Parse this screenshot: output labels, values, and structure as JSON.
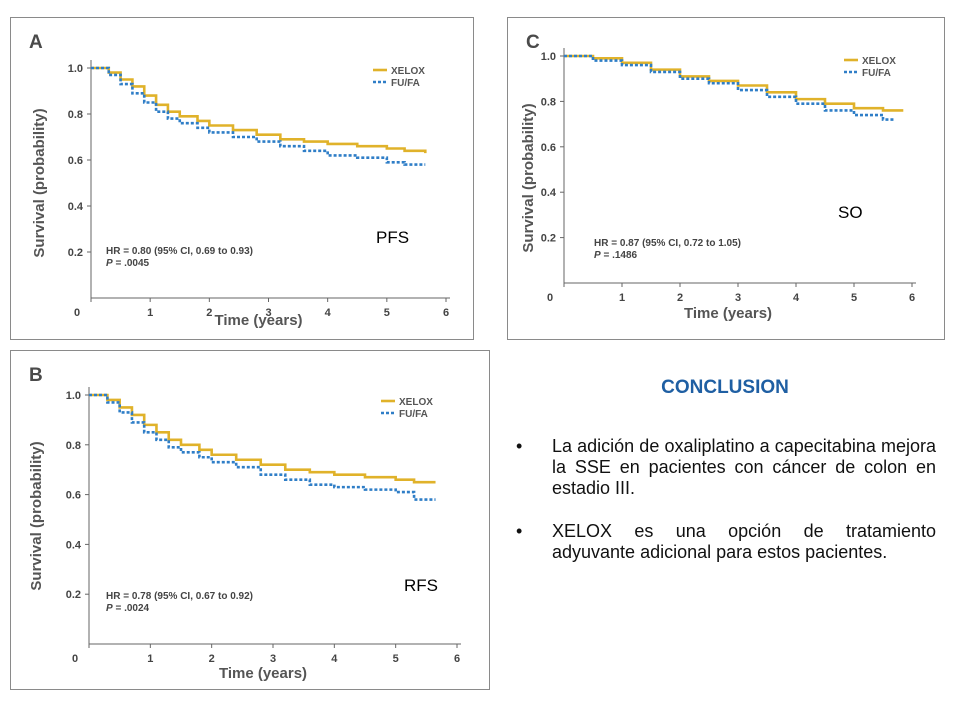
{
  "colors": {
    "xelox": "#e0b22a",
    "fufa": "#2f7ec7",
    "axis": "#666666",
    "conclusion_title": "#1f5fa3"
  },
  "chart_data": [
    {
      "type": "line",
      "panel": "A",
      "endpoint_label": "PFS",
      "xlabel": "Time (years)",
      "ylabel": "Survival (probability)",
      "xlim": [
        0,
        6
      ],
      "ylim": [
        0,
        1.0
      ],
      "x_ticks": [
        "0",
        "1",
        "2",
        "3",
        "4",
        "5",
        "6"
      ],
      "y_ticks": [
        "1.0",
        "0.8",
        "0.6",
        "0.4",
        "0.2"
      ],
      "legend": {
        "placement": "top-right",
        "entries": [
          "XELOX",
          "FU/FA"
        ]
      },
      "stats": {
        "hr": "HR = 0.80 (95% CI, 0.69 to 0.93)",
        "p_prefix": "P",
        "p_value": " = .0045"
      },
      "series": [
        {
          "name": "XELOX",
          "style": "solid",
          "x": [
            0,
            0.3,
            0.5,
            0.7,
            0.9,
            1.1,
            1.3,
            1.5,
            1.8,
            2.0,
            2.4,
            2.8,
            3.2,
            3.6,
            4.0,
            4.5,
            5.0,
            5.3,
            5.65
          ],
          "y": [
            1.0,
            0.98,
            0.95,
            0.92,
            0.88,
            0.84,
            0.81,
            0.79,
            0.77,
            0.75,
            0.73,
            0.71,
            0.69,
            0.68,
            0.67,
            0.66,
            0.65,
            0.64,
            0.63
          ]
        },
        {
          "name": "FU/FA",
          "style": "dotted",
          "x": [
            0,
            0.3,
            0.5,
            0.7,
            0.9,
            1.1,
            1.3,
            1.5,
            1.8,
            2.0,
            2.4,
            2.8,
            3.2,
            3.6,
            4.0,
            4.5,
            5.0,
            5.3,
            5.65
          ],
          "y": [
            1.0,
            0.97,
            0.93,
            0.89,
            0.85,
            0.81,
            0.78,
            0.76,
            0.74,
            0.72,
            0.7,
            0.68,
            0.66,
            0.64,
            0.62,
            0.61,
            0.59,
            0.58,
            0.58
          ]
        }
      ]
    },
    {
      "type": "line",
      "panel": "B",
      "endpoint_label": "RFS",
      "xlabel": "Time (years)",
      "ylabel": "Survival (probability)",
      "xlim": [
        0,
        6
      ],
      "ylim": [
        0,
        1.0
      ],
      "x_ticks": [
        "0",
        "1",
        "2",
        "3",
        "4",
        "5",
        "6"
      ],
      "y_ticks": [
        "1.0",
        "0.8",
        "0.6",
        "0.4",
        "0.2"
      ],
      "legend": {
        "placement": "top-right",
        "entries": [
          "XELOX",
          "FU/FA"
        ]
      },
      "stats": {
        "hr": "HR = 0.78 (95% CI, 0.67 to 0.92)",
        "p_prefix": "P",
        "p_value": " = .0024"
      },
      "series": [
        {
          "name": "XELOX",
          "style": "solid",
          "x": [
            0,
            0.3,
            0.5,
            0.7,
            0.9,
            1.1,
            1.3,
            1.5,
            1.8,
            2.0,
            2.4,
            2.8,
            3.2,
            3.6,
            4.0,
            4.5,
            5.0,
            5.3,
            5.65
          ],
          "y": [
            1.0,
            0.98,
            0.95,
            0.92,
            0.88,
            0.85,
            0.82,
            0.8,
            0.78,
            0.76,
            0.74,
            0.72,
            0.7,
            0.69,
            0.68,
            0.67,
            0.66,
            0.65,
            0.65
          ]
        },
        {
          "name": "FU/FA",
          "style": "dotted",
          "x": [
            0,
            0.3,
            0.5,
            0.7,
            0.9,
            1.1,
            1.3,
            1.5,
            1.8,
            2.0,
            2.4,
            2.8,
            3.2,
            3.6,
            4.0,
            4.5,
            5.0,
            5.3,
            5.65
          ],
          "y": [
            1.0,
            0.97,
            0.93,
            0.89,
            0.85,
            0.82,
            0.79,
            0.77,
            0.75,
            0.73,
            0.71,
            0.68,
            0.66,
            0.64,
            0.63,
            0.62,
            0.61,
            0.58,
            0.58
          ]
        }
      ]
    },
    {
      "type": "line",
      "panel": "C",
      "endpoint_label": "SO",
      "xlabel": "Time (years)",
      "ylabel": "Survival (probability)",
      "xlim": [
        0,
        6
      ],
      "ylim": [
        0,
        1.0
      ],
      "x_ticks": [
        "0",
        "1",
        "2",
        "3",
        "4",
        "5",
        "6"
      ],
      "y_ticks": [
        "1.0",
        "0.8",
        "0.6",
        "0.4",
        "0.2"
      ],
      "legend": {
        "placement": "top-right",
        "entries": [
          "XELOX",
          "FU/FA"
        ]
      },
      "stats": {
        "hr": "HR = 0.87 (95% CI, 0.72 to 1.05)",
        "p_prefix": "P",
        "p_value": " = .1486"
      },
      "series": [
        {
          "name": "XELOX",
          "style": "solid",
          "x": [
            0,
            0.5,
            1.0,
            1.5,
            2.0,
            2.5,
            3.0,
            3.5,
            4.0,
            4.5,
            5.0,
            5.5,
            5.85
          ],
          "y": [
            1.0,
            0.99,
            0.97,
            0.94,
            0.91,
            0.89,
            0.87,
            0.84,
            0.81,
            0.79,
            0.77,
            0.76,
            0.76
          ]
        },
        {
          "name": "FU/FA",
          "style": "dotted",
          "x": [
            0,
            0.5,
            1.0,
            1.5,
            2.0,
            2.5,
            3.0,
            3.5,
            4.0,
            4.5,
            5.0,
            5.5,
            5.7
          ],
          "y": [
            1.0,
            0.98,
            0.96,
            0.93,
            0.9,
            0.88,
            0.85,
            0.82,
            0.79,
            0.76,
            0.74,
            0.72,
            0.72
          ]
        }
      ]
    }
  ],
  "conclusion": {
    "title": "CONCLUSION",
    "bullet_symbol": "•",
    "bullets": [
      "La adición de oxaliplatino a capecitabina mejora la SSE en pacientes con cáncer de colon en estadio III.",
      "XELOX es una opción de tratamiento adyuvante adicional para estos pacientes."
    ]
  }
}
